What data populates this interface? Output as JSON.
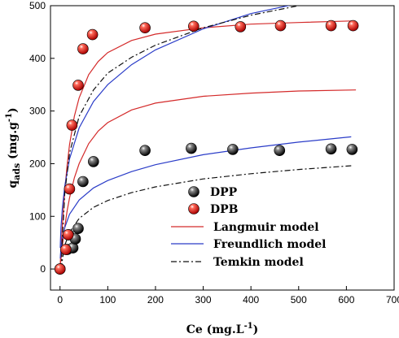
{
  "chart_data": {
    "type": "scatter",
    "xlim": [
      -20,
      700
    ],
    "ylim": [
      -40,
      500
    ],
    "xticks": [
      0,
      100,
      200,
      300,
      400,
      500,
      600,
      700
    ],
    "yticks": [
      0,
      100,
      200,
      300,
      400,
      500
    ],
    "xlabel_main": "Ce (mg.L",
    "xlabel_sup": "-1",
    "xlabel_close": ")",
    "ylabel_main": "q",
    "ylabel_sub": "ads",
    "ylabel_unit": " (mg.g",
    "ylabel_sup": "-1",
    "ylabel_close": ")",
    "legend_position": "bottom-center",
    "series": [
      {
        "name": "DPP",
        "kind": "points",
        "color": "#111111",
        "points": [
          [
            0,
            0
          ],
          [
            15,
            37
          ],
          [
            18,
            65
          ],
          [
            27,
            40
          ],
          [
            32,
            57
          ],
          [
            38,
            77
          ],
          [
            48,
            166
          ],
          [
            70,
            204
          ],
          [
            178,
            225
          ],
          [
            275,
            229
          ],
          [
            362,
            227
          ],
          [
            460,
            225
          ],
          [
            568,
            228
          ],
          [
            612,
            227
          ]
        ]
      },
      {
        "name": "DPB",
        "kind": "points",
        "color": "#e8241c",
        "points": [
          [
            0,
            0
          ],
          [
            12,
            37
          ],
          [
            17,
            65
          ],
          [
            20,
            152
          ],
          [
            25,
            273
          ],
          [
            38,
            349
          ],
          [
            48,
            418
          ],
          [
            68,
            445
          ],
          [
            178,
            458
          ],
          [
            280,
            461
          ],
          [
            378,
            460
          ],
          [
            462,
            462
          ],
          [
            568,
            462
          ],
          [
            614,
            462
          ]
        ]
      },
      {
        "name": "Langmuir model",
        "kind": "lines",
        "color": "#d42a2a",
        "dash": "",
        "curves": [
          [
            [
              0,
              0
            ],
            [
              2,
              19
            ],
            [
              5,
              45
            ],
            [
              10,
              81
            ],
            [
              15,
              111
            ],
            [
              20,
              135
            ],
            [
              30,
              173
            ],
            [
              40,
              200
            ],
            [
              60,
              238
            ],
            [
              80,
              262
            ],
            [
              100,
              278
            ],
            [
              150,
              302
            ],
            [
              200,
              315
            ],
            [
              300,
              328
            ],
            [
              400,
              334
            ],
            [
              500,
              338
            ],
            [
              620,
              340
            ]
          ],
          [
            [
              0,
              0
            ],
            [
              2,
              38
            ],
            [
              5,
              86
            ],
            [
              10,
              150
            ],
            [
              15,
              198
            ],
            [
              20,
              236
            ],
            [
              30,
              290
            ],
            [
              40,
              325
            ],
            [
              60,
              369
            ],
            [
              80,
              394
            ],
            [
              100,
              411
            ],
            [
              150,
              434
            ],
            [
              200,
              446
            ],
            [
              300,
              458
            ],
            [
              400,
              465
            ],
            [
              500,
              468
            ],
            [
              610,
              471
            ]
          ]
        ]
      },
      {
        "name": "Freundlich model",
        "kind": "lines",
        "color": "#2a3cc8",
        "dash": "",
        "curves": [
          [
            [
              0.5,
              20
            ],
            [
              1,
              28
            ],
            [
              2,
              39
            ],
            [
              5,
              59
            ],
            [
              10,
              79
            ],
            [
              20,
              104
            ],
            [
              40,
              131
            ],
            [
              70,
              154
            ],
            [
              100,
              168
            ],
            [
              150,
              185
            ],
            [
              200,
              198
            ],
            [
              300,
              217
            ],
            [
              400,
              230
            ],
            [
              500,
              241
            ],
            [
              610,
              251
            ]
          ],
          [
            [
              0.5,
              40
            ],
            [
              1,
              56
            ],
            [
              2,
              79
            ],
            [
              5,
              118
            ],
            [
              10,
              158
            ],
            [
              20,
              209
            ],
            [
              40,
              268
            ],
            [
              70,
              318
            ],
            [
              100,
              350
            ],
            [
              150,
              388
            ],
            [
              200,
              416
            ],
            [
              300,
              456
            ],
            [
              400,
              485
            ],
            [
              530,
              510
            ]
          ]
        ]
      },
      {
        "name": "Temkin model",
        "kind": "lines",
        "color": "#111111",
        "dash": "7,3,2,3",
        "curves": [
          [
            [
              3,
              0
            ],
            [
              5,
              19
            ],
            [
              10,
              45
            ],
            [
              20,
              70
            ],
            [
              40,
              96
            ],
            [
              70,
              117
            ],
            [
              100,
              130
            ],
            [
              150,
              145
            ],
            [
              200,
              156
            ],
            [
              300,
              171
            ],
            [
              400,
              181
            ],
            [
              500,
              189
            ],
            [
              610,
              196
            ]
          ],
          [
            [
              2.5,
              0
            ],
            [
              5,
              60
            ],
            [
              10,
              145
            ],
            [
              20,
              220
            ],
            [
              40,
              290
            ],
            [
              70,
              340
            ],
            [
              100,
              372
            ],
            [
              150,
              402
            ],
            [
              200,
              425
            ],
            [
              300,
              458
            ],
            [
              400,
              482
            ],
            [
              500,
              500
            ]
          ]
        ]
      }
    ]
  }
}
